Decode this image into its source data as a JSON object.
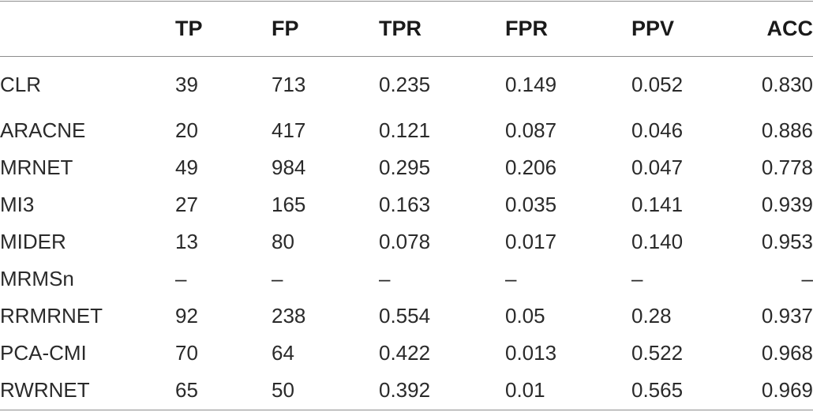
{
  "table": {
    "columns": [
      "",
      "TP",
      "FP",
      "TPR",
      "FPR",
      "PPV",
      "ACC"
    ],
    "rows": [
      [
        "CLR",
        "39",
        "713",
        "0.235",
        "0.149",
        "0.052",
        "0.830"
      ],
      [
        "ARACNE",
        "20",
        "417",
        "0.121",
        "0.087",
        "0.046",
        "0.886"
      ],
      [
        "MRNET",
        "49",
        "984",
        "0.295",
        "0.206",
        "0.047",
        "0.778"
      ],
      [
        "MI3",
        "27",
        "165",
        "0.163",
        "0.035",
        "0.141",
        "0.939"
      ],
      [
        "MIDER",
        "13",
        "80",
        "0.078",
        "0.017",
        "0.140",
        "0.953"
      ],
      [
        "MRMSn",
        "–",
        "–",
        "–",
        "–",
        "–",
        "–"
      ],
      [
        "RRMRNET",
        "92",
        "238",
        "0.554",
        "0.05",
        "0.28",
        "0.937"
      ],
      [
        "PCA-CMI",
        "70",
        "64",
        "0.422",
        "0.013",
        "0.522",
        "0.968"
      ],
      [
        "RWRNET",
        "65",
        "50",
        "0.392",
        "0.01",
        "0.565",
        "0.969"
      ]
    ]
  }
}
